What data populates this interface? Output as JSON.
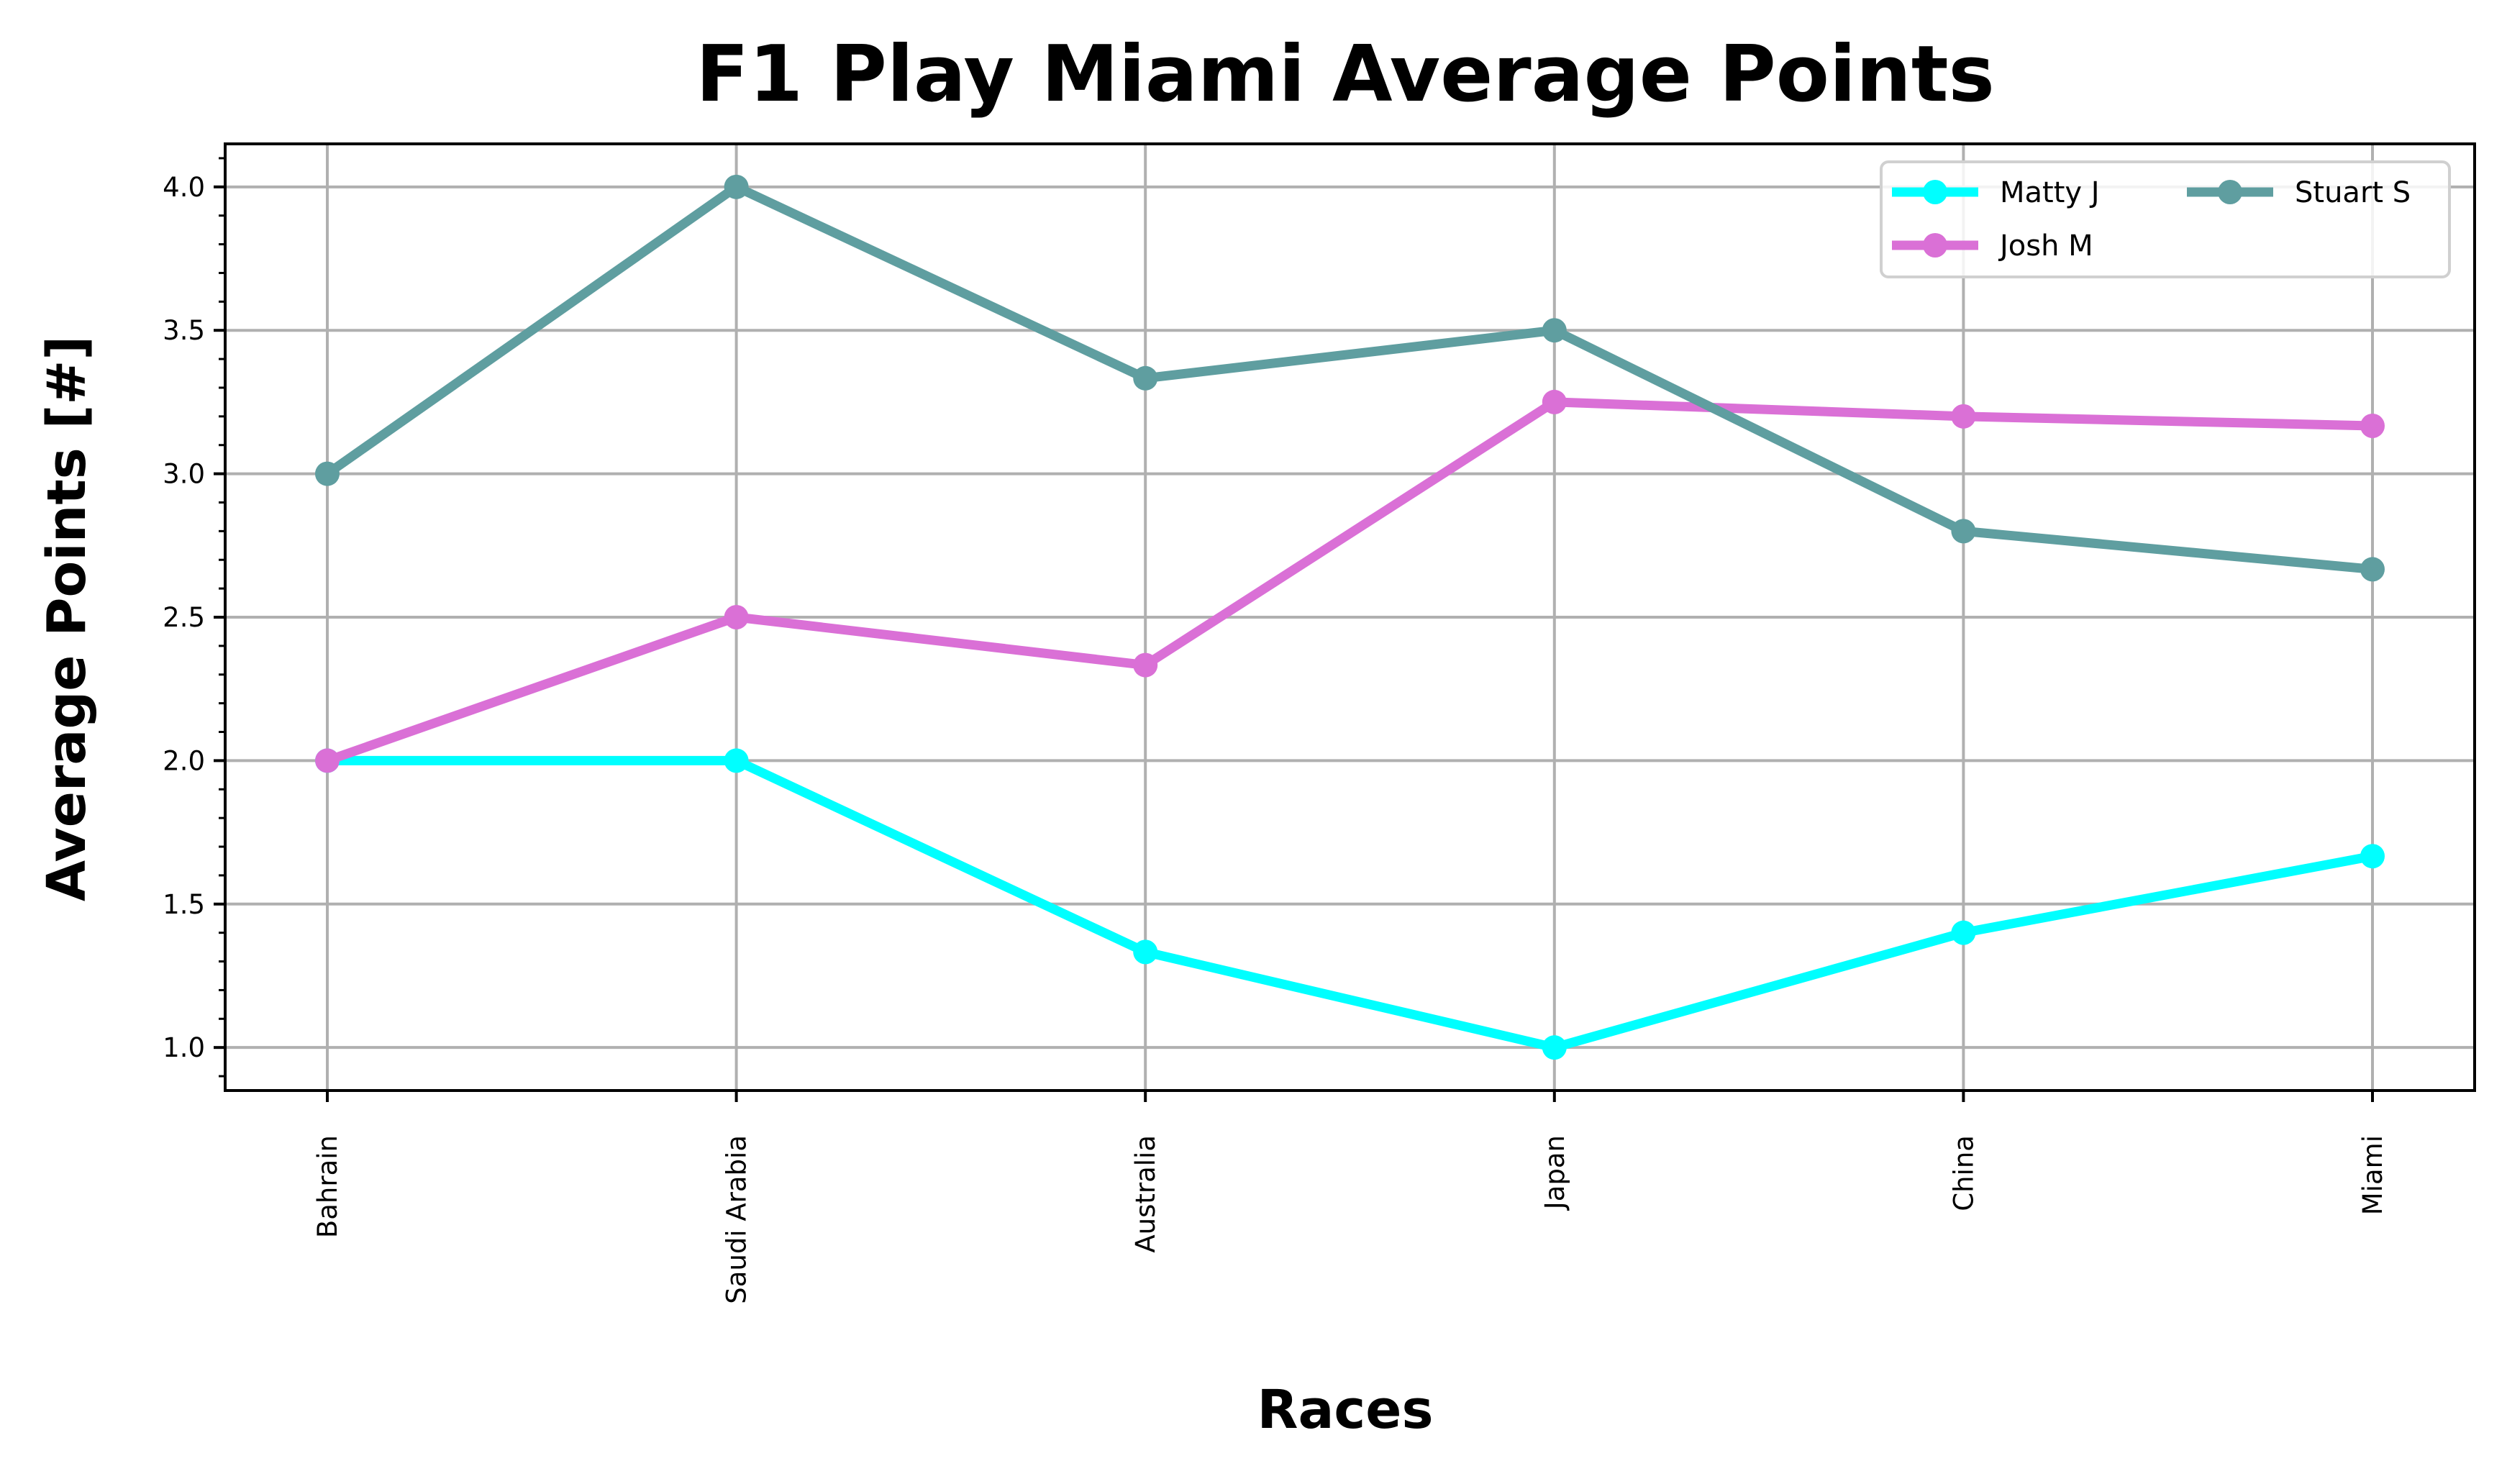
{
  "chart_data": {
    "type": "line",
    "title": "F1 Play Miami Average Points",
    "xlabel": "Races",
    "ylabel": "Average Points [#]",
    "categories": [
      "Bahrain",
      "Saudi Arabia",
      "Australia",
      "Japan",
      "China",
      "Miami"
    ],
    "ylim": [
      0.85,
      4.15
    ],
    "yticks": [
      "1.0",
      "1.5",
      "2.0",
      "2.5",
      "3.0",
      "3.5",
      "4.0"
    ],
    "grid": true,
    "legend_position": "top-right",
    "series": [
      {
        "name": "Matty J",
        "color": "#00ffff",
        "values": [
          2.0,
          2.0,
          1.333,
          1.0,
          1.4,
          1.667
        ]
      },
      {
        "name": "Josh M",
        "color": "#da70d6",
        "values": [
          2.0,
          2.5,
          2.333,
          3.25,
          3.2,
          3.167
        ]
      },
      {
        "name": "Stuart S",
        "color": "#5f9ea0",
        "values": [
          3.0,
          4.0,
          3.333,
          3.5,
          2.8,
          2.667
        ]
      }
    ]
  }
}
